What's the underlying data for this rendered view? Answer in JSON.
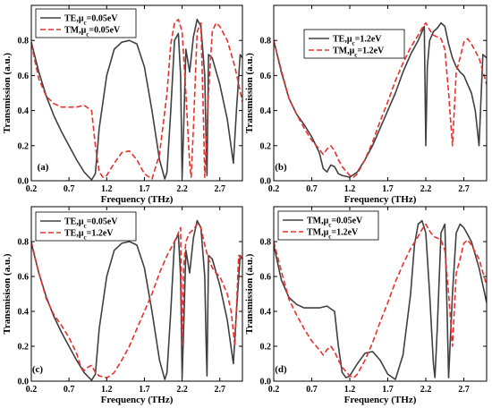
{
  "colors": {
    "te": "#404040",
    "tm": "#e8312c"
  },
  "chart_data": [
    {
      "type": "line",
      "panel_label": "(a)",
      "xlabel": "Frequency (THz)",
      "ylabel": "Transmission (a.u.)",
      "xlim": [
        0.2,
        3.0
      ],
      "ylim": [
        0.0,
        1.0
      ],
      "xticks": [
        0.2,
        0.7,
        1.2,
        1.7,
        2.2,
        2.7
      ],
      "yticks": [
        0.0,
        0.2,
        0.4,
        0.6,
        0.8
      ],
      "legend_position": "top-left",
      "series": [
        {
          "name": "TE,μc=0.05eV",
          "style": "solid",
          "color": "#404040",
          "x": [
            0.2,
            0.3,
            0.4,
            0.5,
            0.6,
            0.7,
            0.8,
            0.9,
            1.0,
            1.05,
            1.1,
            1.2,
            1.3,
            1.4,
            1.5,
            1.6,
            1.7,
            1.8,
            1.9,
            1.97,
            2.0,
            2.05,
            2.1,
            2.15,
            2.18,
            2.2,
            2.22,
            2.25,
            2.3,
            2.35,
            2.4,
            2.45,
            2.5,
            2.52,
            2.53,
            2.55,
            2.6,
            2.7,
            2.8,
            2.88,
            2.92,
            2.97,
            3.0
          ],
          "y": [
            0.79,
            0.62,
            0.48,
            0.37,
            0.28,
            0.2,
            0.12,
            0.05,
            0.005,
            0.04,
            0.3,
            0.6,
            0.75,
            0.79,
            0.8,
            0.78,
            0.65,
            0.4,
            0.12,
            0.01,
            0.05,
            0.4,
            0.8,
            0.84,
            0.6,
            0.02,
            0.3,
            0.75,
            0.62,
            0.82,
            0.92,
            0.88,
            0.6,
            0.2,
            0.03,
            0.72,
            0.7,
            0.55,
            0.35,
            0.1,
            0.4,
            0.72,
            0.7
          ]
        },
        {
          "name": "TM,μc=0.05eV",
          "style": "dashed",
          "color": "#e8312c",
          "x": [
            0.2,
            0.3,
            0.4,
            0.5,
            0.6,
            0.7,
            0.8,
            0.9,
            1.0,
            1.05,
            1.1,
            1.15,
            1.2,
            1.3,
            1.4,
            1.5,
            1.6,
            1.7,
            1.8,
            1.9,
            2.0,
            2.05,
            2.1,
            2.15,
            2.2,
            2.25,
            2.3,
            2.32,
            2.35,
            2.4,
            2.45,
            2.48,
            2.5,
            2.55,
            2.6,
            2.65,
            2.7,
            2.8,
            2.9,
            2.95,
            3.0
          ],
          "y": [
            0.78,
            0.58,
            0.48,
            0.44,
            0.42,
            0.42,
            0.42,
            0.43,
            0.4,
            0.2,
            0.05,
            0.02,
            0.03,
            0.1,
            0.16,
            0.17,
            0.12,
            0.04,
            0.01,
            0.15,
            0.5,
            0.78,
            0.9,
            0.92,
            0.85,
            0.5,
            0.1,
            0.02,
            0.3,
            0.85,
            0.9,
            0.4,
            0.02,
            0.5,
            0.85,
            0.9,
            0.88,
            0.8,
            0.65,
            0.55,
            0.45
          ]
        }
      ]
    },
    {
      "type": "line",
      "panel_label": "(b)",
      "xlabel": "Frequency (THz)",
      "ylabel": "Transmission (a.u.)",
      "xlim": [
        0.2,
        3.0
      ],
      "ylim": [
        0.0,
        1.0
      ],
      "xticks": [
        0.2,
        0.7,
        1.2,
        1.7,
        2.2,
        2.7
      ],
      "yticks": [
        0.0,
        0.2,
        0.4,
        0.6,
        0.8
      ],
      "legend_position": "top-center",
      "series": [
        {
          "name": "TE,μc=1.2eV",
          "style": "solid",
          "color": "#404040",
          "x": [
            0.2,
            0.3,
            0.4,
            0.5,
            0.6,
            0.7,
            0.8,
            0.85,
            0.9,
            0.95,
            1.0,
            1.05,
            1.1,
            1.2,
            1.3,
            1.4,
            1.5,
            1.6,
            1.7,
            1.8,
            1.9,
            2.0,
            2.1,
            2.15,
            2.18,
            2.2,
            2.22,
            2.25,
            2.3,
            2.35,
            2.4,
            2.45,
            2.5,
            2.55,
            2.6,
            2.65,
            2.7,
            2.8,
            2.85,
            2.9,
            2.95,
            3.0
          ],
          "y": [
            0.8,
            0.62,
            0.47,
            0.38,
            0.32,
            0.25,
            0.16,
            0.07,
            0.05,
            0.09,
            0.08,
            0.04,
            0.03,
            0.02,
            0.05,
            0.12,
            0.2,
            0.3,
            0.4,
            0.5,
            0.62,
            0.72,
            0.8,
            0.85,
            0.88,
            0.2,
            0.65,
            0.8,
            0.85,
            0.87,
            0.9,
            0.88,
            0.78,
            0.7,
            0.65,
            0.62,
            0.6,
            0.5,
            0.4,
            0.2,
            0.72,
            0.7
          ]
        },
        {
          "name": "TM,μc=1.2eV",
          "style": "dashed",
          "color": "#e8312c",
          "x": [
            0.2,
            0.3,
            0.4,
            0.5,
            0.6,
            0.7,
            0.8,
            0.85,
            0.9,
            0.95,
            1.0,
            1.05,
            1.1,
            1.2,
            1.25,
            1.3,
            1.4,
            1.5,
            1.6,
            1.7,
            1.8,
            1.9,
            2.0,
            2.1,
            2.15,
            2.2,
            2.25,
            2.3,
            2.35,
            2.4,
            2.45,
            2.5,
            2.55,
            2.6,
            2.65,
            2.7,
            2.75,
            2.8,
            2.9,
            3.0
          ],
          "y": [
            0.8,
            0.63,
            0.47,
            0.38,
            0.3,
            0.23,
            0.18,
            0.15,
            0.18,
            0.2,
            0.17,
            0.12,
            0.08,
            0.03,
            0.02,
            0.04,
            0.12,
            0.22,
            0.34,
            0.45,
            0.57,
            0.67,
            0.76,
            0.83,
            0.87,
            0.9,
            0.86,
            0.83,
            0.82,
            0.81,
            0.75,
            0.5,
            0.2,
            0.62,
            0.7,
            0.79,
            0.81,
            0.78,
            0.7,
            0.55
          ]
        }
      ]
    },
    {
      "type": "line",
      "panel_label": "(c)",
      "xlabel": "Frequency (THz)",
      "ylabel": "Transmisison (a.u.)",
      "xlim": [
        0.2,
        3.0
      ],
      "ylim": [
        0.0,
        1.0
      ],
      "xticks": [
        0.2,
        0.7,
        1.2,
        1.7,
        2.2,
        2.7
      ],
      "yticks": [
        0.0,
        0.2,
        0.4,
        0.6,
        0.8
      ],
      "legend_position": "top-left",
      "series": [
        {
          "name": "TE,μc=0.05eV",
          "style": "solid",
          "color": "#404040",
          "x": [
            0.2,
            0.3,
            0.4,
            0.5,
            0.6,
            0.7,
            0.8,
            0.9,
            1.0,
            1.05,
            1.1,
            1.2,
            1.3,
            1.4,
            1.5,
            1.6,
            1.7,
            1.8,
            1.9,
            1.97,
            2.0,
            2.05,
            2.1,
            2.15,
            2.18,
            2.2,
            2.22,
            2.25,
            2.3,
            2.35,
            2.4,
            2.45,
            2.5,
            2.52,
            2.53,
            2.55,
            2.6,
            2.7,
            2.8,
            2.88,
            2.92,
            2.97,
            3.0
          ],
          "y": [
            0.79,
            0.62,
            0.48,
            0.37,
            0.28,
            0.2,
            0.12,
            0.05,
            0.005,
            0.04,
            0.3,
            0.6,
            0.75,
            0.79,
            0.8,
            0.78,
            0.65,
            0.4,
            0.12,
            0.01,
            0.05,
            0.4,
            0.8,
            0.84,
            0.6,
            0.02,
            0.3,
            0.75,
            0.62,
            0.82,
            0.92,
            0.88,
            0.6,
            0.2,
            0.03,
            0.72,
            0.7,
            0.55,
            0.35,
            0.1,
            0.4,
            0.72,
            0.7
          ]
        },
        {
          "name": "TE,μc=1.2eV",
          "style": "dashed",
          "color": "#e8312c",
          "x": [
            0.2,
            0.3,
            0.4,
            0.5,
            0.6,
            0.7,
            0.8,
            0.85,
            0.9,
            0.95,
            1.0,
            1.05,
            1.1,
            1.2,
            1.25,
            1.3,
            1.4,
            1.5,
            1.6,
            1.7,
            1.8,
            1.9,
            2.0,
            2.1,
            2.15,
            2.18,
            2.2,
            2.22,
            2.25,
            2.3,
            2.35,
            2.4,
            2.45,
            2.5,
            2.55,
            2.6,
            2.65,
            2.7,
            2.8,
            2.85,
            2.9,
            2.95,
            3.0
          ],
          "y": [
            0.8,
            0.62,
            0.47,
            0.38,
            0.32,
            0.25,
            0.16,
            0.09,
            0.06,
            0.08,
            0.09,
            0.05,
            0.03,
            0.02,
            0.03,
            0.05,
            0.12,
            0.2,
            0.3,
            0.4,
            0.5,
            0.62,
            0.72,
            0.8,
            0.85,
            0.88,
            0.2,
            0.65,
            0.8,
            0.85,
            0.87,
            0.9,
            0.88,
            0.78,
            0.7,
            0.65,
            0.62,
            0.6,
            0.5,
            0.4,
            0.2,
            0.72,
            0.7
          ]
        }
      ]
    },
    {
      "type": "line",
      "panel_label": "(d)",
      "xlabel": "Frequency (THz)",
      "ylabel": "Transmission (a.u.)",
      "xlim": [
        0.2,
        3.0
      ],
      "ylim": [
        0.0,
        1.0
      ],
      "xticks": [
        0.2,
        0.7,
        1.2,
        1.7,
        2.2,
        2.7
      ],
      "yticks": [
        0.0,
        0.2,
        0.4,
        0.6,
        0.8
      ],
      "legend_position": "top-left",
      "series": [
        {
          "name": "TM,μc=0.05eV",
          "style": "solid",
          "color": "#404040",
          "x": [
            0.2,
            0.3,
            0.4,
            0.5,
            0.6,
            0.7,
            0.8,
            0.9,
            1.0,
            1.05,
            1.1,
            1.15,
            1.2,
            1.3,
            1.4,
            1.5,
            1.6,
            1.7,
            1.8,
            1.9,
            2.0,
            2.05,
            2.1,
            2.15,
            2.2,
            2.25,
            2.3,
            2.32,
            2.35,
            2.4,
            2.45,
            2.48,
            2.5,
            2.55,
            2.6,
            2.65,
            2.7,
            2.8,
            2.9,
            2.95,
            3.0
          ],
          "y": [
            0.78,
            0.58,
            0.48,
            0.44,
            0.42,
            0.42,
            0.42,
            0.43,
            0.4,
            0.2,
            0.05,
            0.02,
            0.03,
            0.1,
            0.16,
            0.17,
            0.12,
            0.04,
            0.01,
            0.15,
            0.5,
            0.78,
            0.9,
            0.92,
            0.85,
            0.5,
            0.1,
            0.02,
            0.3,
            0.85,
            0.9,
            0.4,
            0.02,
            0.5,
            0.85,
            0.9,
            0.88,
            0.8,
            0.65,
            0.55,
            0.45
          ]
        },
        {
          "name": "TM,μc=1.2eV",
          "style": "dashed",
          "color": "#e8312c",
          "x": [
            0.2,
            0.3,
            0.4,
            0.5,
            0.6,
            0.7,
            0.8,
            0.85,
            0.9,
            0.95,
            1.0,
            1.05,
            1.1,
            1.2,
            1.25,
            1.3,
            1.4,
            1.5,
            1.6,
            1.7,
            1.8,
            1.9,
            2.0,
            2.1,
            2.15,
            2.2,
            2.25,
            2.3,
            2.35,
            2.4,
            2.45,
            2.5,
            2.55,
            2.6,
            2.65,
            2.7,
            2.75,
            2.8,
            2.9,
            3.0
          ],
          "y": [
            0.8,
            0.63,
            0.47,
            0.38,
            0.3,
            0.23,
            0.18,
            0.15,
            0.18,
            0.2,
            0.17,
            0.12,
            0.08,
            0.03,
            0.02,
            0.04,
            0.12,
            0.22,
            0.34,
            0.45,
            0.57,
            0.67,
            0.76,
            0.83,
            0.87,
            0.9,
            0.86,
            0.83,
            0.82,
            0.81,
            0.75,
            0.5,
            0.2,
            0.62,
            0.7,
            0.79,
            0.81,
            0.78,
            0.7,
            0.55
          ]
        }
      ]
    }
  ]
}
